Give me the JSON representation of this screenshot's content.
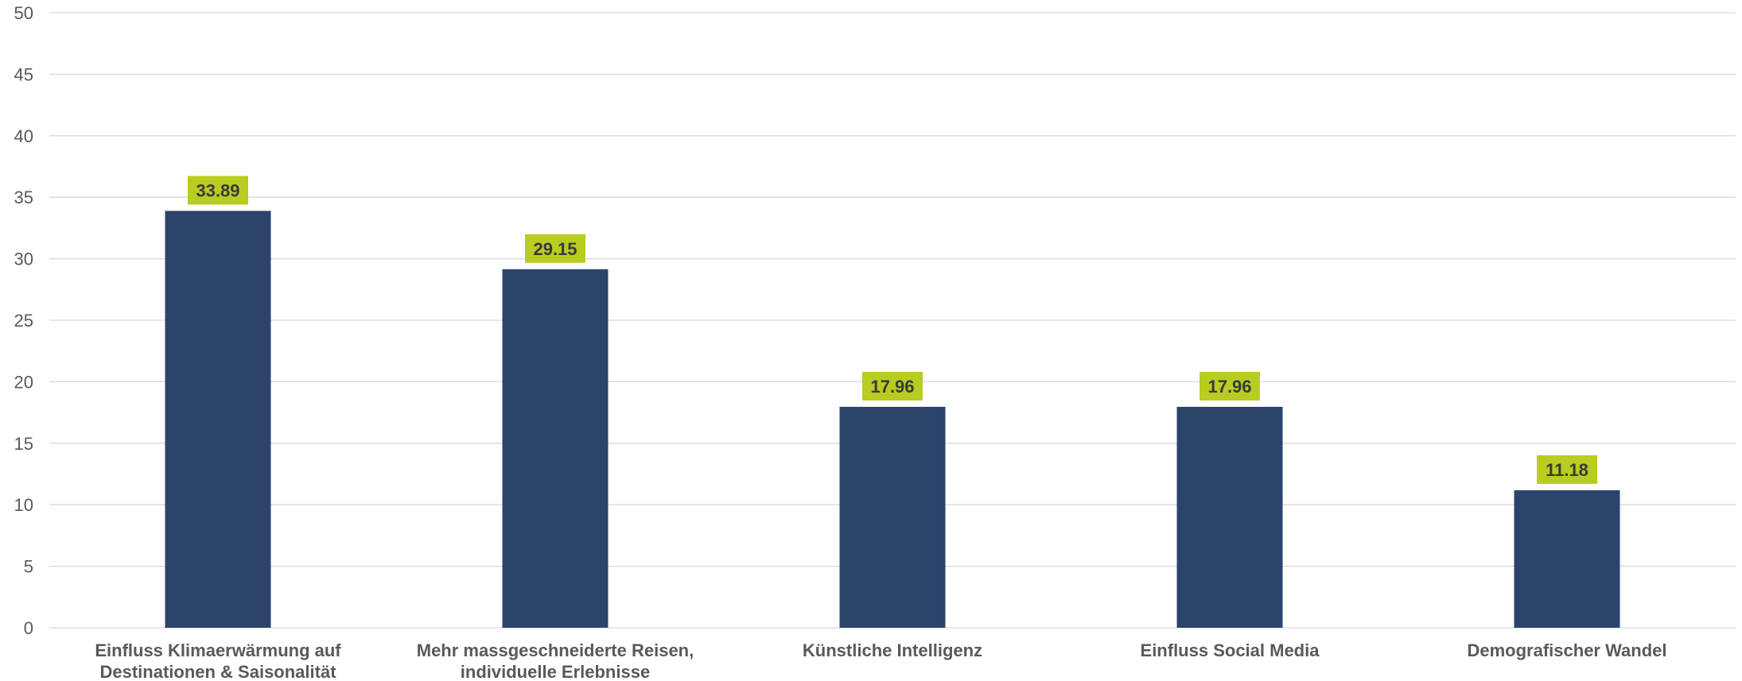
{
  "chart_data": {
    "type": "bar",
    "title": "",
    "xlabel": "",
    "ylabel": "",
    "ylim": [
      0,
      50
    ],
    "yticks": [
      0,
      5,
      10,
      15,
      20,
      25,
      30,
      35,
      40,
      45,
      50
    ],
    "grid": true,
    "legend": "none",
    "categories": [
      [
        "Einfluss Klimaerwärmung auf",
        "Destinationen & Saisonalität"
      ],
      [
        "Mehr massgeschneiderte Reisen,",
        "individuelle Erlebnisse"
      ],
      [
        "Künstliche Intelligenz"
      ],
      [
        "Einfluss Social Media"
      ],
      [
        "Demografischer Wandel"
      ]
    ],
    "values": [
      33.89,
      29.15,
      17.96,
      17.96,
      11.18
    ],
    "data_labels": [
      "33.89",
      "29.15",
      "17.96",
      "17.96",
      "11.18"
    ],
    "colors": {
      "bar": "#2c446c",
      "label_bg": "#b8cc22",
      "grid": "#d9d9d9",
      "axis_text": "#595959"
    }
  }
}
